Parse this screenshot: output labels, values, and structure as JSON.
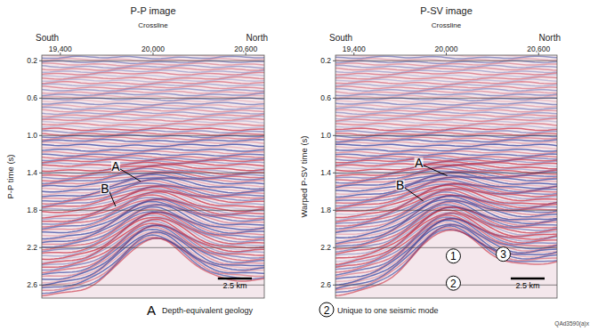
{
  "chart_data": [
    {
      "type": "seismic",
      "title": "P-P image",
      "subtitle": "Crossline",
      "directions": [
        "South",
        "North"
      ],
      "y_label": "P-P time (s)",
      "xlim": [
        19280,
        20720
      ],
      "xticks": [
        {
          "value": 19400,
          "label": "19,400"
        },
        {
          "value": 20000,
          "label": "20,000"
        },
        {
          "value": 20600,
          "label": "20,600"
        }
      ],
      "ylim": [
        0.14,
        2.74
      ],
      "yticks": [
        0.2,
        0.6,
        {
          "value": 1,
          "label": "1.0"
        },
        1.4,
        1.8,
        2.2,
        2.6
      ],
      "grid": true,
      "scale_bar": {
        "label": "2.5 km",
        "length": 220
      },
      "annotations": [
        {
          "text": "A",
          "x": 19758,
          "y": 1.33,
          "x_end": 19919,
          "y_end": 1.49
        },
        {
          "text": "B",
          "x": 19688,
          "y": 1.57,
          "x_end": 19758,
          "y_end": 1.76
        }
      ]
    },
    {
      "type": "seismic",
      "title": "P-SV image",
      "subtitle": "Crossline",
      "directions": [
        "South",
        "North"
      ],
      "y_label": "Warped P-SV time (s)",
      "xlim": [
        19280,
        20720
      ],
      "xticks": [
        {
          "value": 19400,
          "label": "19,400"
        },
        {
          "value": 20000,
          "label": "20,000"
        },
        {
          "value": 20600,
          "label": "20,600"
        }
      ],
      "ylim": [
        0.14,
        2.74
      ],
      "yticks": [
        0.2,
        0.6,
        {
          "value": 1,
          "label": "1.0"
        },
        1.4,
        1.8,
        2.2,
        2.6
      ],
      "grid": true,
      "scale_bar": {
        "label": "2.5 km",
        "length": 220
      },
      "annotations": [
        {
          "text": "A",
          "x": 19821,
          "y": 1.29,
          "x_end": 20006,
          "y_end": 1.43
        },
        {
          "text": "B",
          "x": 19700,
          "y": 1.53,
          "x_end": 19850,
          "y_end": 1.7
        },
        {
          "text": "1",
          "x": 20046,
          "y": 2.29,
          "marker": "circle"
        },
        {
          "text": "2",
          "x": 20046,
          "y": 2.58,
          "marker": "circle"
        },
        {
          "text": "3",
          "x": 20370,
          "y": 2.27,
          "marker": "circle"
        }
      ]
    }
  ],
  "key": [
    {
      "symbol": "A",
      "text": "Depth-equivalent geology"
    },
    {
      "symbol": "2",
      "text": "Unique to one seismic mode",
      "marker": "circle"
    }
  ],
  "figure_id": "QAd3590(a)x"
}
